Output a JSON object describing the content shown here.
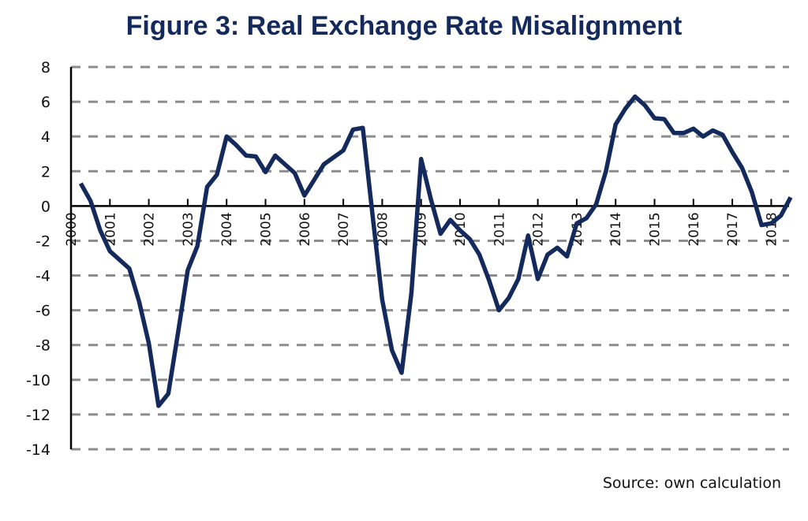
{
  "chart_data": {
    "type": "line",
    "title": "Figure 3: Real Exchange Rate Misalignment",
    "xlabel": "",
    "ylabel": "",
    "ylim": [
      -14,
      8
    ],
    "xlim": [
      2000,
      2018.6
    ],
    "yticks": [
      8,
      6,
      4,
      2,
      0,
      -2,
      -4,
      -6,
      -8,
      -10,
      -12,
      -14
    ],
    "xtick_labels": [
      "2000",
      "2001",
      "2002",
      "2003",
      "2004",
      "2005",
      "2006",
      "2007",
      "2008",
      "2009",
      "2010",
      "2011",
      "2012",
      "2013",
      "2014",
      "2015",
      "2016",
      "2017",
      "2018"
    ],
    "grid": "horizontal dashed",
    "legend": "none",
    "line_color": "#142a5c",
    "series": [
      {
        "name": "Real exchange rate misalignment",
        "x": [
          2000.25,
          2000.5,
          2000.75,
          2001.0,
          2001.25,
          2001.5,
          2001.75,
          2002.0,
          2002.25,
          2002.5,
          2002.75,
          2003.0,
          2003.25,
          2003.5,
          2003.75,
          2004.0,
          2004.25,
          2004.5,
          2004.75,
          2005.0,
          2005.25,
          2005.5,
          2005.75,
          2006.0,
          2006.25,
          2006.5,
          2006.75,
          2007.0,
          2007.25,
          2007.5,
          2007.75,
          2008.0,
          2008.25,
          2008.5,
          2008.75,
          2009.0,
          2009.25,
          2009.5,
          2009.75,
          2010.0,
          2010.25,
          2010.5,
          2010.75,
          2011.0,
          2011.25,
          2011.5,
          2011.75,
          2012.0,
          2012.25,
          2012.5,
          2012.75,
          2013.0,
          2013.25,
          2013.5,
          2013.75,
          2014.0,
          2014.25,
          2014.5,
          2014.75,
          2015.0,
          2015.25,
          2015.5,
          2015.75,
          2016.0,
          2016.25,
          2016.5,
          2016.75,
          2017.0,
          2017.25,
          2017.5,
          2017.75,
          2018.0,
          2018.25,
          2018.5
        ],
        "values": [
          1.3,
          0.3,
          -1.4,
          -2.6,
          -3.1,
          -3.6,
          -5.5,
          -7.9,
          -11.5,
          -10.8,
          -7.3,
          -3.7,
          -2.3,
          1.1,
          1.8,
          4.0,
          3.5,
          2.9,
          2.85,
          1.95,
          2.9,
          2.4,
          1.9,
          0.6,
          1.5,
          2.4,
          2.8,
          3.2,
          4.4,
          4.5,
          -0.5,
          -5.4,
          -8.3,
          -9.6,
          -5.0,
          2.7,
          0.4,
          -1.6,
          -0.8,
          -1.4,
          -1.9,
          -2.8,
          -4.3,
          -6.0,
          -5.3,
          -4.2,
          -1.7,
          -4.2,
          -2.8,
          -2.4,
          -2.9,
          -1.0,
          -0.7,
          0.1,
          2.0,
          4.7,
          5.6,
          6.3,
          5.8,
          5.05,
          5.0,
          4.2,
          4.2,
          4.45,
          4.0,
          4.35,
          4.1,
          3.1,
          2.2,
          0.8,
          -1.1,
          -1.0,
          -0.55,
          0.5
        ]
      }
    ]
  },
  "source_note": "Source: own calculation"
}
